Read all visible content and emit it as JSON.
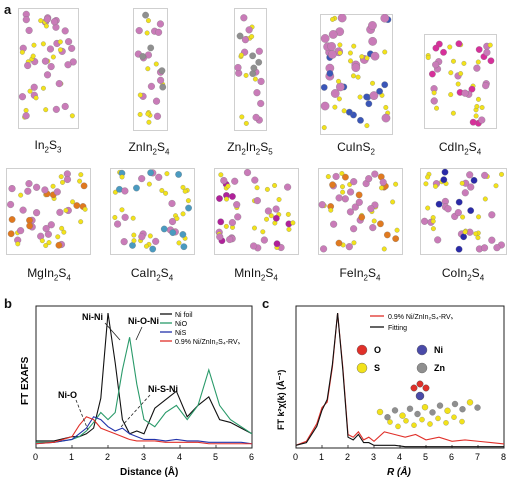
{
  "panels": {
    "a": "a",
    "b": "b",
    "c": "c"
  },
  "structures": [
    {
      "base": "In",
      "s1": "2",
      "mid": "S",
      "s2": "3",
      "tail": "",
      "s3": ""
    },
    {
      "base": "ZnIn",
      "s1": "2",
      "mid": "S",
      "s2": "4",
      "tail": "",
      "s3": ""
    },
    {
      "base": "Zn",
      "s1": "2",
      "mid": "In",
      "s2": "2",
      "tail": "S",
      "s3": "5"
    },
    {
      "base": "CuInS",
      "s1": "2",
      "mid": "",
      "s2": "",
      "tail": "",
      "s3": ""
    },
    {
      "base": "CdIn",
      "s1": "2",
      "mid": "S",
      "s2": "4",
      "tail": "",
      "s3": ""
    },
    {
      "base": "MgIn",
      "s1": "2",
      "mid": "S",
      "s2": "4",
      "tail": "",
      "s3": ""
    },
    {
      "base": "CaIn",
      "s1": "2",
      "mid": "S",
      "s2": "4",
      "tail": "",
      "s3": ""
    },
    {
      "base": "MnIn",
      "s1": "2",
      "mid": "S",
      "s2": "4",
      "tail": "",
      "s3": ""
    },
    {
      "base": "FeIn",
      "s1": "2",
      "mid": "S",
      "s2": "4",
      "tail": "",
      "s3": ""
    },
    {
      "base": "CoIn",
      "s1": "2",
      "mid": "S",
      "s2": "4",
      "tail": "",
      "s3": ""
    }
  ],
  "colors": {
    "In": "#c97bb8",
    "S": "#f2e21a",
    "Zn": "#8f8f8f",
    "Cu": "#3a56b8",
    "Cd": "#d6309a",
    "Mg": "#e0781e",
    "Ca": "#4a9ac0",
    "Mn": "#b0209a",
    "Fe": "#e07a20",
    "Co": "#2a2aa8",
    "Ni_foil": "#111111",
    "NiO": "#2a9a6a",
    "NiS": "#2233aa",
    "sample": "#e0302a",
    "O": "#e0302a",
    "Ni": "#4a4aa8"
  },
  "chart_b": {
    "type": "line",
    "ylabel": "FT EXAFS",
    "xlabel": "Distance (Å)",
    "xlim": [
      0,
      6
    ],
    "xticks": [
      "0",
      "1",
      "2",
      "3",
      "4",
      "5",
      "6"
    ],
    "legend": [
      "Ni foil",
      "NiO",
      "NiS",
      "0.9% Ni/ZnIn₂S₄-RVₛ"
    ],
    "annotations": [
      "Ni-Ni",
      "Ni-O-Ni",
      "Ni-O",
      "Ni-S-Ni"
    ]
  },
  "chart_c": {
    "type": "line",
    "ylabel": "FT k²χ(k) (Å⁻³)",
    "xlabel": "R (Å)",
    "xlim": [
      0,
      8
    ],
    "xticks": [
      "0",
      "1",
      "2",
      "3",
      "4",
      "5",
      "6",
      "7",
      "8"
    ],
    "legend": [
      "0.9% Ni/ZnIn₂S₄-RVₛ",
      "Fitting"
    ],
    "atom_legend": [
      "O",
      "Ni",
      "S",
      "Zn"
    ]
  },
  "chart_data": [
    {
      "type": "line",
      "xlabel": "Distance (Å)",
      "ylabel": "FT EXAFS",
      "xlim": [
        0,
        6
      ],
      "series": [
        {
          "name": "Ni foil",
          "x": [
            0,
            0.5,
            1,
            1.2,
            1.4,
            1.6,
            1.8,
            2.0,
            2.2,
            2.4,
            2.6,
            2.8,
            3.0,
            3.3,
            3.6,
            3.9,
            4.2,
            4.5,
            4.8,
            5.1,
            5.4,
            5.7,
            6.0
          ],
          "y": [
            0.05,
            0.05,
            0.08,
            0.08,
            0.1,
            0.14,
            0.35,
            0.95,
            0.6,
            0.2,
            0.1,
            0.12,
            0.1,
            0.28,
            0.34,
            0.4,
            0.22,
            0.3,
            0.36,
            0.2,
            0.18,
            0.14,
            0.1
          ]
        },
        {
          "name": "NiO",
          "x": [
            0,
            0.5,
            1,
            1.2,
            1.4,
            1.6,
            1.8,
            2.0,
            2.2,
            2.4,
            2.6,
            2.8,
            3.0,
            3.3,
            3.6,
            3.9,
            4.2,
            4.5,
            4.8,
            5.1,
            5.4,
            5.7,
            6.0
          ],
          "y": [
            0.04,
            0.04,
            0.06,
            0.08,
            0.12,
            0.18,
            0.25,
            0.2,
            0.25,
            0.55,
            0.78,
            0.45,
            0.2,
            0.15,
            0.25,
            0.3,
            0.2,
            0.3,
            0.55,
            0.3,
            0.2,
            0.15,
            0.1
          ]
        },
        {
          "name": "NiS",
          "x": [
            0,
            0.5,
            1,
            1.2,
            1.4,
            1.6,
            1.8,
            2.0,
            2.2,
            2.4,
            2.6,
            2.8,
            3.0,
            3.3,
            3.6,
            3.9,
            4.2,
            4.5,
            4.8,
            5.1,
            5.4,
            5.7,
            6.0
          ],
          "y": [
            0.03,
            0.04,
            0.06,
            0.1,
            0.14,
            0.22,
            0.2,
            0.15,
            0.12,
            0.14,
            0.1,
            0.08,
            0.06,
            0.06,
            0.05,
            0.06,
            0.05,
            0.05,
            0.04,
            0.04,
            0.04,
            0.04,
            0.03
          ]
        },
        {
          "name": "0.9% Ni/ZnIn₂S₄-RVₛ",
          "x": [
            0,
            0.5,
            1,
            1.2,
            1.4,
            1.6,
            1.8,
            2.0,
            2.2,
            2.4,
            2.6,
            2.8,
            3.0,
            3.3,
            3.6,
            3.9,
            4.2,
            4.5,
            4.8,
            5.1,
            5.4,
            5.7,
            6.0
          ],
          "y": [
            0.03,
            0.04,
            0.08,
            0.16,
            0.22,
            0.2,
            0.14,
            0.12,
            0.1,
            0.08,
            0.06,
            0.05,
            0.05,
            0.05,
            0.04,
            0.04,
            0.04,
            0.04,
            0.03,
            0.03,
            0.03,
            0.03,
            0.03
          ]
        }
      ]
    },
    {
      "type": "line",
      "xlabel": "R (Å)",
      "ylabel": "FT k²χ(k) (Å⁻³)",
      "xlim": [
        0,
        8
      ],
      "series": [
        {
          "name": "0.9% Ni/ZnIn₂S₄-RVₛ",
          "x": [
            0,
            0.4,
            0.8,
            1.0,
            1.2,
            1.4,
            1.6,
            1.8,
            2.0,
            2.2,
            2.4,
            2.6,
            2.8,
            3.0,
            3.4,
            3.8,
            4.2,
            4.6,
            5.0,
            5.5,
            6.0,
            6.5,
            7.0,
            7.5,
            8.0
          ],
          "y": [
            0.02,
            0.05,
            0.18,
            0.3,
            0.34,
            0.6,
            1.0,
            0.6,
            0.1,
            0.08,
            0.12,
            0.06,
            0.08,
            0.05,
            0.12,
            0.1,
            0.08,
            0.1,
            0.06,
            0.08,
            0.05,
            0.06,
            0.05,
            0.04,
            0.03
          ]
        },
        {
          "name": "Fitting",
          "x": [
            0,
            0.4,
            0.8,
            1.0,
            1.2,
            1.4,
            1.6,
            1.8,
            2.0,
            2.2,
            2.4,
            2.6,
            2.8,
            3.0,
            3.4,
            3.8,
            4.2,
            4.6,
            5.0,
            5.5,
            6.0,
            6.5,
            7.0,
            7.5,
            8.0
          ],
          "y": [
            0.02,
            0.04,
            0.16,
            0.28,
            0.36,
            0.62,
            1.0,
            0.58,
            0.08,
            0.06,
            0.1,
            0.04,
            0.04,
            0.02,
            0.02,
            0.02,
            0.01,
            0.01,
            0.01,
            0.01,
            0.01,
            0.01,
            0.01,
            0.01,
            0.01
          ]
        }
      ]
    }
  ]
}
